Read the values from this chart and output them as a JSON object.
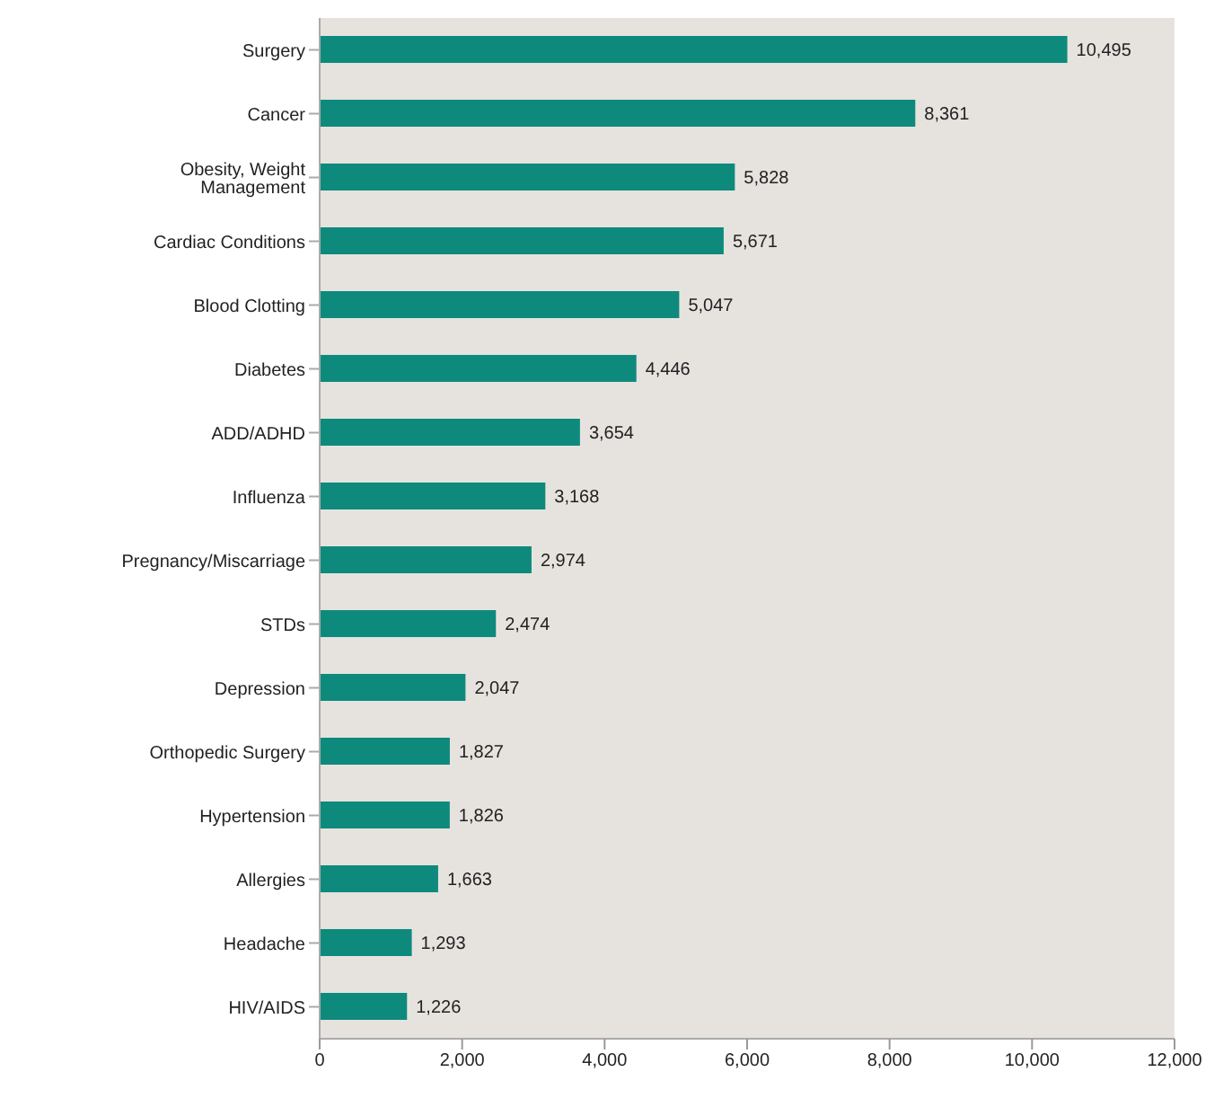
{
  "chart_data": {
    "type": "bar",
    "orientation": "horizontal",
    "categories": [
      "Surgery",
      "Cancer",
      "Obesity, Weight Management",
      "Cardiac Conditions",
      "Blood Clotting",
      "Diabetes",
      "ADD/ADHD",
      "Influenza",
      "Pregnancy/Miscarriage",
      "STDs",
      "Depression",
      "Orthopedic Surgery",
      "Hypertension",
      "Allergies",
      "Headache",
      "HIV/AIDS"
    ],
    "values": [
      10495,
      8361,
      5828,
      5671,
      5047,
      4446,
      3654,
      3168,
      2974,
      2474,
      2047,
      1827,
      1826,
      1663,
      1293,
      1226
    ],
    "value_labels": [
      "10,495",
      "8,361",
      "5,828",
      "5,671",
      "5,047",
      "4,446",
      "3,654",
      "3,168",
      "2,974",
      "2,474",
      "2,047",
      "1,827",
      "1,826",
      "1,663",
      "1,293",
      "1,226"
    ],
    "color": "#0e8a7c",
    "xlim": [
      0,
      12000
    ],
    "xticks": [
      {
        "value": 0,
        "label": "0"
      },
      {
        "value": 2000,
        "label": "2,000"
      },
      {
        "value": 4000,
        "label": "4,000"
      },
      {
        "value": 6000,
        "label": "6,000"
      },
      {
        "value": 8000,
        "label": "8,000"
      },
      {
        "value": 10000,
        "label": "10,000"
      },
      {
        "value": 12000,
        "label": "12,000"
      }
    ],
    "grid": false
  }
}
